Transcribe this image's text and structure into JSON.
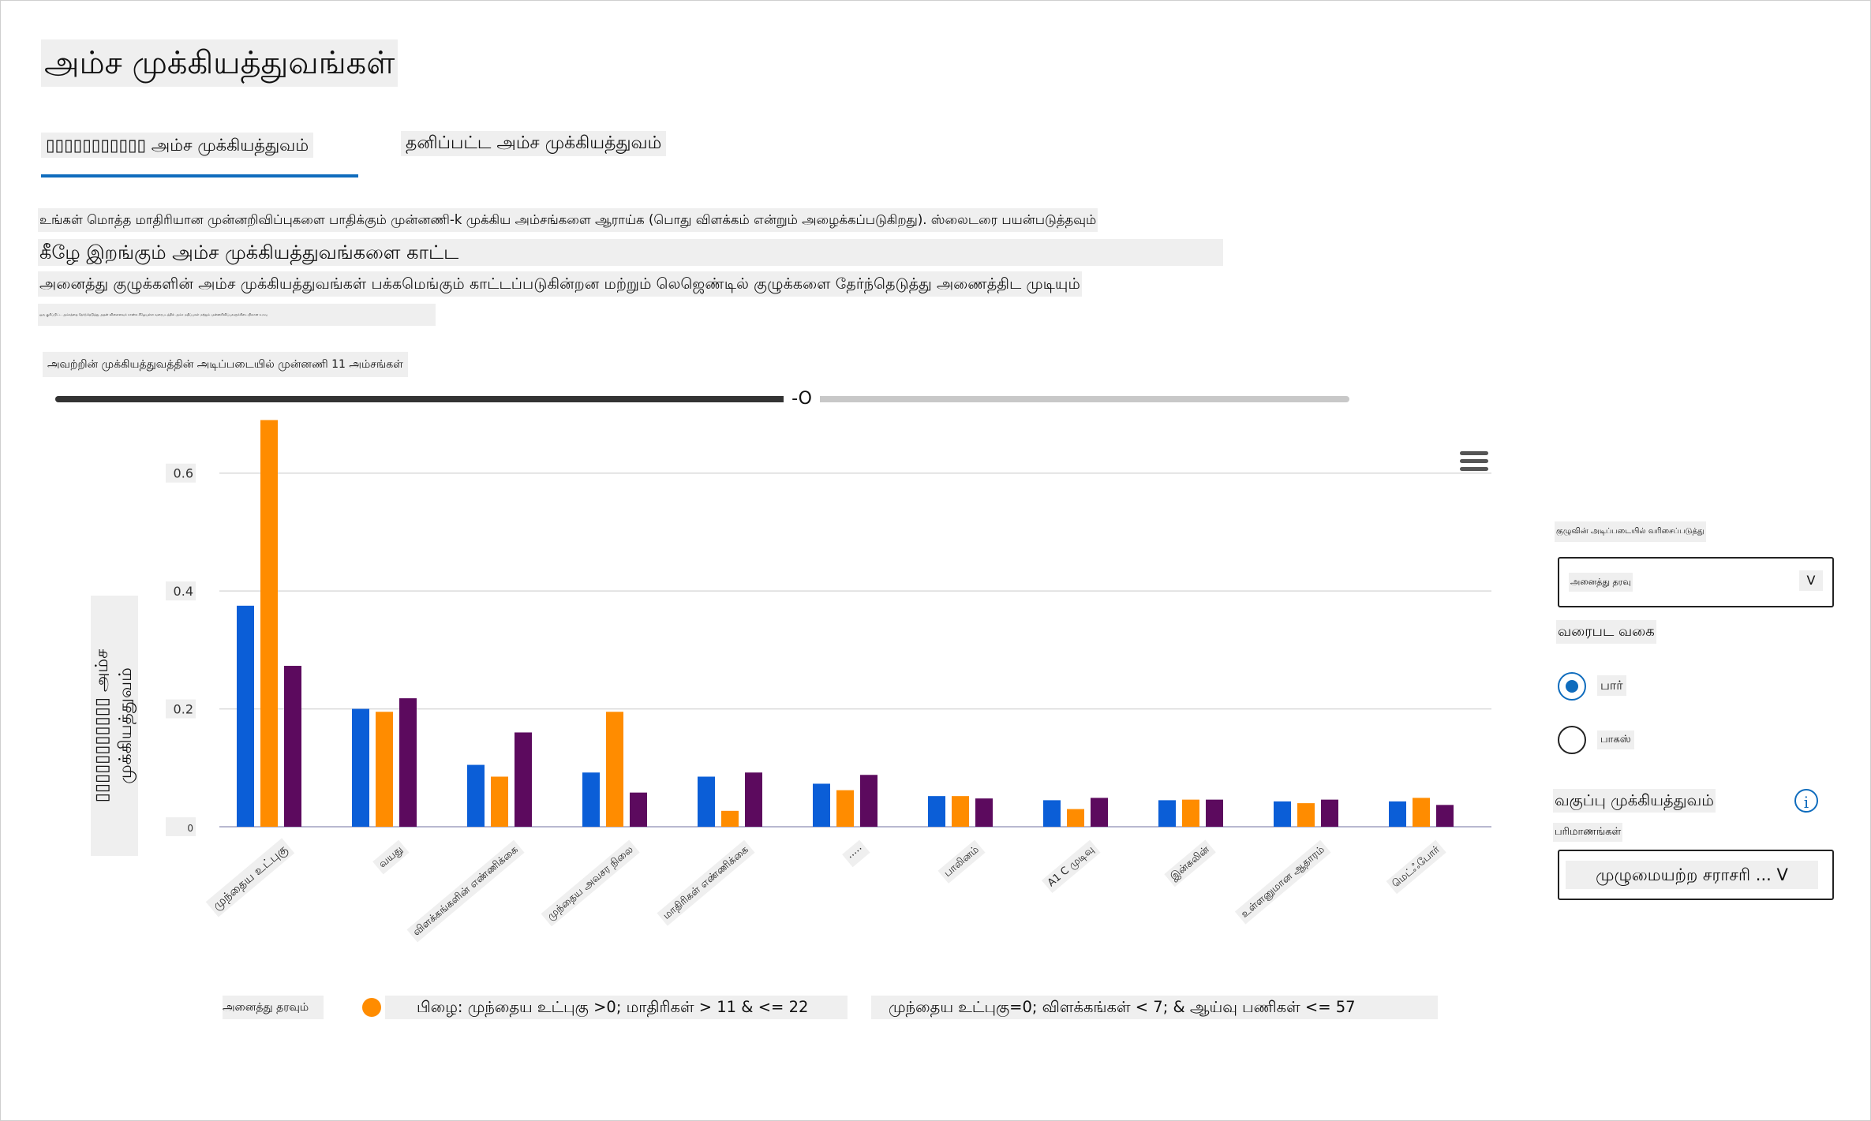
{
  "page": {
    "title": "அம்ச முக்கியத்துவங்கள்"
  },
  "tabs": [
    {
      "label": "▯▯▯▯▯▯▯▯▯▯▯ அம்ச முக்கியத்துவம்",
      "selected": true
    },
    {
      "label": "தனிப்பட்ட அம்ச முக்கியத்துவம்",
      "selected": false
    }
  ],
  "description": {
    "line1": "உங்கள் மொத்த மாதிரியான முன்னறிவிப்புகளை பாதிக்கும் முன்னணி-k முக்கிய அம்சங்களை ஆராய்க (பொது விளக்கம் என்றும் அழைக்கப்படுகிறது). ஸ்லைடரை பயன்படுத்தவும்",
    "line2": "கீழே இறங்கும் அம்ச முக்கியத்துவங்களை காட்ட",
    "line3": "அனைத்து குழுக்களின் அம்ச முக்கியத்துவங்கள் பக்கமெங்கும் காட்டப்படுகின்றன மற்றும் லெஜெண்டில் குழுக்களை தேர்ந்தெடுத்து அணைத்திட முடியும்",
    "line4": "ஒரு குறிப்பிட்ட அம்சத்தை தேர்ந்தெடுத்து அதன் விளைவைக் காண்க கீழேயுள்ள வரைபடத்தில் அம்ச மதிப்புகள் மற்றும் முன்னறிவிப்புகளுக்கிடையிலான உறவு"
  },
  "slider": {
    "label": "அவற்றின் முக்கியத்துவத்தின் அடிப்படையில் முன்னணி 11 அம்சங்கள்",
    "thumb_text": "-O",
    "value": 11,
    "max": 20
  },
  "menu": {
    "icon": "hamburger-menu-icon"
  },
  "chart_data": {
    "type": "bar",
    "ylabel": "▯▯▯▯▯▯▯▯▯▯▯ அம்ச முக்கியத்துவம்",
    "ylim": [
      0,
      0.7
    ],
    "yticks": [
      "0",
      "0.2",
      "0.4",
      "0.6"
    ],
    "ytick_values": [
      0,
      0.2,
      0.4,
      0.6
    ],
    "grid": true,
    "categories": [
      "முந்தைய உட்புகு",
      "வயது",
      "விளக்கங்களின் எண்ணிக்கை",
      "முந்தைய அவசர நிலை",
      "மாதிரிகள் எண்ணிக்கை",
      "·····",
      "பாலினம்",
      "A1 C முடிவு",
      "இன்சுலின்",
      "உள்ளனுமான ஆதாரம்",
      "மெட்ஃபோர்"
    ],
    "series": [
      {
        "values": [
          0.375,
          0.2,
          0.105,
          0.092,
          0.085,
          0.073,
          0.052,
          0.045,
          0.045,
          0.043,
          0.043
        ],
        "color": "#0b5ed7"
      },
      {
        "values": [
          0.69,
          0.195,
          0.085,
          0.195,
          0.027,
          0.062,
          0.052,
          0.03,
          0.046,
          0.04,
          0.049
        ],
        "color": "#ff8c00"
      },
      {
        "values": [
          0.273,
          0.218,
          0.16,
          0.058,
          0.092,
          0.088,
          0.048,
          0.049,
          0.046,
          0.046,
          0.037
        ],
        "color": "#5c0a5e"
      }
    ],
    "legend": [
      "அனைத்து தரவும்",
      "பிழை: முந்தைய உட்புகு >0; மாதிரிகள் > 11 & <= 22",
      "முந்தைய உட்புகு=0; விளக்கங்கள் < 7; & ஆய்வு பணிகள் <= 57"
    ]
  },
  "sidebar": {
    "cohort_label": "குழுவின் அடிப்படையில் வரிசைப்படுத்து",
    "cohort_value": "அனைத்து தரவு",
    "chart_type_label": "வரைபட வகை",
    "options": [
      "பார்",
      "பாகஸ்"
    ],
    "selected_option": 0,
    "class_importance_label": "வகுப்பு முக்கியத்துவம்",
    "dimension_label": "பரிமாணங்கள்",
    "aggregation_value": "முழுமையற்ற சராசரி ... V",
    "chevron": "V"
  }
}
